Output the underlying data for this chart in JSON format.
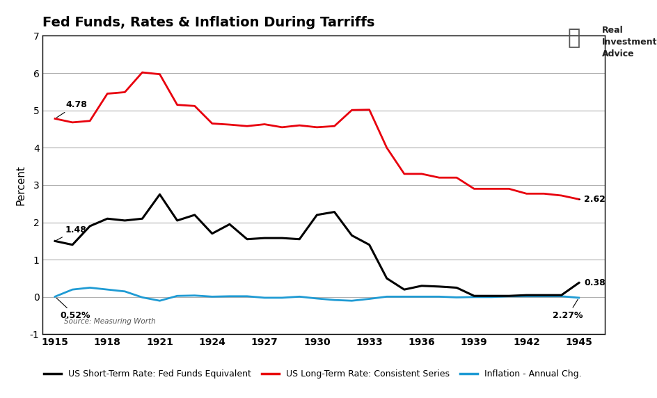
{
  "title": "Fed Funds, Rates & Inflation During Tarriffs",
  "ylabel": "Percent",
  "source": "Source: Measuring Worth",
  "years": [
    1915,
    1916,
    1917,
    1918,
    1919,
    1920,
    1921,
    1922,
    1923,
    1924,
    1925,
    1926,
    1927,
    1928,
    1929,
    1930,
    1931,
    1932,
    1933,
    1934,
    1935,
    1936,
    1937,
    1938,
    1939,
    1940,
    1941,
    1942,
    1943,
    1944,
    1945
  ],
  "short_term": [
    1.5,
    1.4,
    1.9,
    2.1,
    2.05,
    2.1,
    2.75,
    2.05,
    2.2,
    1.7,
    1.95,
    1.55,
    1.58,
    1.58,
    1.55,
    2.2,
    2.28,
    1.65,
    1.4,
    0.5,
    0.2,
    0.3,
    0.28,
    0.25,
    0.03,
    0.03,
    0.03,
    0.05,
    0.05,
    0.05,
    0.38
  ],
  "long_term": [
    4.78,
    4.68,
    4.72,
    5.45,
    5.49,
    6.02,
    5.97,
    5.15,
    5.12,
    4.65,
    4.62,
    4.58,
    4.63,
    4.55,
    4.6,
    4.55,
    4.58,
    5.01,
    5.02,
    4.0,
    3.3,
    3.3,
    3.2,
    3.2,
    2.9,
    2.9,
    2.9,
    2.77,
    2.77,
    2.72,
    2.62
  ],
  "inflation": [
    0.01,
    0.2,
    0.25,
    0.2,
    0.15,
    -0.01,
    -0.1,
    0.03,
    0.04,
    0.01,
    0.02,
    0.02,
    -0.02,
    -0.02,
    0.01,
    -0.04,
    -0.08,
    -0.1,
    -0.05,
    0.01,
    0.01,
    0.01,
    0.01,
    -0.01,
    0.0,
    0.0,
    0.02,
    0.02,
    0.02,
    0.02,
    -0.02
  ],
  "short_term_color": "#000000",
  "long_term_color": "#e8000d",
  "inflation_color": "#1f9bd4",
  "xlim_left": 1914.3,
  "xlim_right": 1946.5,
  "ylim_bottom": -1,
  "ylim_top": 7,
  "yticks": [
    -1,
    0,
    1,
    2,
    3,
    4,
    5,
    6,
    7
  ],
  "xticks": [
    1915,
    1918,
    1921,
    1924,
    1927,
    1930,
    1933,
    1936,
    1939,
    1942,
    1945
  ],
  "background_color": "#ffffff",
  "grid_color": "#b0b0b0",
  "border_color": "#000000"
}
